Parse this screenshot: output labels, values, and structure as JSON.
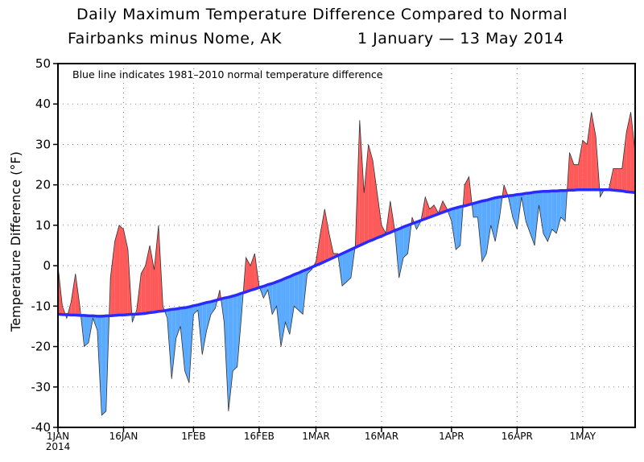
{
  "chart_data": {
    "type": "area",
    "title": "Daily Maximum Temperature Difference Compared to Normal",
    "subtitle_left": "Fairbanks minus Nome, AK",
    "subtitle_right": "1 January — 13 May 2014",
    "annotation": "Blue line indicates 1981–2010 normal temperature difference",
    "ylabel": "Temperature Difference (°F)",
    "xlabel": "",
    "ylim": [
      -40,
      50
    ],
    "yticks": [
      -40,
      -30,
      -20,
      -10,
      0,
      10,
      20,
      30,
      40,
      50
    ],
    "x_start_date": "2014-01-01",
    "x_end_date": "2014-05-13",
    "xticks": [
      {
        "day": 0,
        "label": "1JAN",
        "sublabel": "2014"
      },
      {
        "day": 15,
        "label": "16JAN"
      },
      {
        "day": 31,
        "label": "1FEB"
      },
      {
        "day": 46,
        "label": "16FEB"
      },
      {
        "day": 59,
        "label": "1MAR"
      },
      {
        "day": 74,
        "label": "16MAR"
      },
      {
        "day": 90,
        "label": "1APR"
      },
      {
        "day": 105,
        "label": "16APR"
      },
      {
        "day": 120,
        "label": "1MAY"
      }
    ],
    "grid": "dotted",
    "colors": {
      "above_normal": "#ff5a5a",
      "below_normal": "#5aaaff",
      "normal_line": "#2a2aff"
    },
    "series": [
      {
        "role": "observed",
        "values": [
          0,
          -10,
          -13,
          -9,
          -2,
          -10,
          -20,
          -19,
          -13,
          -16,
          -37,
          -36,
          -3,
          6,
          10,
          9,
          4,
          -14,
          -11,
          -2,
          0,
          5,
          -1,
          10,
          -10,
          -13,
          -28,
          -18,
          -15,
          -26,
          -29,
          -12,
          -11,
          -22,
          -16,
          -12,
          -10.5,
          -6,
          -14,
          -36,
          -26,
          -25,
          -12,
          2,
          0,
          3,
          -5,
          -8,
          -6,
          -12,
          -10,
          -20,
          -14,
          -17,
          -10,
          -11,
          -12,
          -2,
          -1,
          1,
          8,
          14,
          8,
          3,
          3,
          -5,
          -4,
          -3,
          5,
          36,
          18,
          30,
          26,
          18,
          10,
          8,
          16,
          9,
          -3,
          2,
          3,
          12,
          9,
          11,
          17,
          14,
          15,
          13,
          16,
          14,
          11,
          4,
          5,
          20,
          22,
          12,
          12,
          1,
          3,
          10,
          6,
          12,
          20,
          17,
          12,
          9,
          17,
          11,
          8,
          5,
          15,
          8,
          6,
          9,
          8,
          12,
          11,
          28,
          25,
          25,
          31,
          30,
          38,
          32,
          17,
          19,
          19,
          24,
          24,
          24,
          33,
          38,
          28
        ]
      },
      {
        "role": "normal 1981-2010",
        "values": [
          -12.0,
          -12.1,
          -12.1,
          -12.2,
          -12.2,
          -12.3,
          -12.3,
          -12.4,
          -12.4,
          -12.5,
          -12.5,
          -12.4,
          -12.4,
          -12.3,
          -12.2,
          -12.2,
          -12.1,
          -12.0,
          -12.0,
          -11.9,
          -11.8,
          -11.6,
          -11.5,
          -11.3,
          -11.2,
          -11.0,
          -10.8,
          -10.7,
          -10.5,
          -10.4,
          -10.2,
          -9.9,
          -9.7,
          -9.4,
          -9.1,
          -8.9,
          -8.6,
          -8.3,
          -8.0,
          -7.8,
          -7.5,
          -7.2,
          -6.8,
          -6.5,
          -6.1,
          -5.8,
          -5.4,
          -5.1,
          -4.7,
          -4.4,
          -4.0,
          -3.6,
          -3.1,
          -2.7,
          -2.2,
          -1.8,
          -1.3,
          -0.9,
          -0.4,
          0.1,
          0.5,
          1.0,
          1.5,
          2.0,
          2.5,
          3.0,
          3.5,
          4.0,
          4.5,
          5.0,
          5.5,
          6.0,
          6.4,
          6.9,
          7.3,
          7.8,
          8.2,
          8.7,
          9.1,
          9.6,
          10.0,
          10.4,
          10.8,
          11.2,
          11.6,
          12.0,
          12.4,
          12.8,
          13.2,
          13.6,
          14.0,
          14.3,
          14.6,
          14.8,
          15.1,
          15.4,
          15.7,
          16.0,
          16.2,
          16.5,
          16.8,
          17.0,
          17.1,
          17.3,
          17.4,
          17.6,
          17.7,
          17.9,
          18.0,
          18.2,
          18.3,
          18.4,
          18.4,
          18.5,
          18.5,
          18.6,
          18.6,
          18.7,
          18.7,
          18.8,
          18.8,
          18.8,
          18.8,
          18.8,
          18.8,
          18.8,
          18.8,
          18.7,
          18.6,
          18.5,
          18.3,
          18.2,
          18.1
        ]
      }
    ]
  }
}
